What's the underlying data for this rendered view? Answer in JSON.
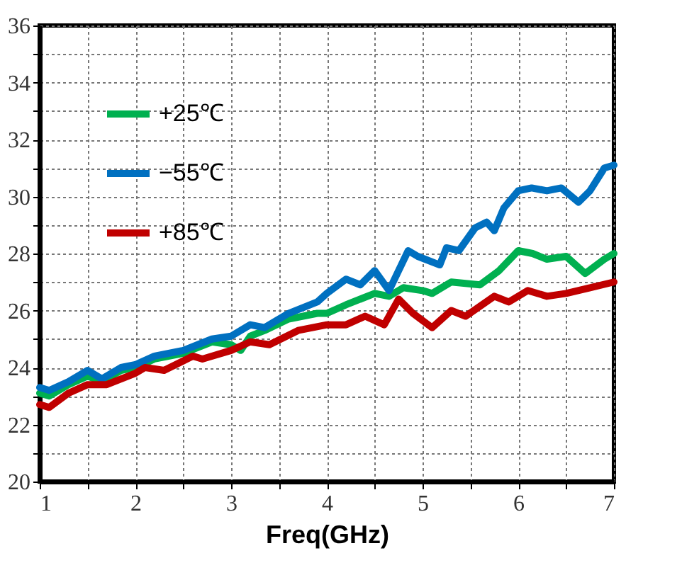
{
  "chart_data": {
    "type": "line",
    "xlabel": "Freq(GHz)",
    "xlim": [
      1,
      7
    ],
    "ylim": [
      20,
      36
    ],
    "xticks": [
      1,
      {
        "value": 1.5,
        "label": null
      },
      2,
      {
        "value": 2.5,
        "label": null
      },
      3,
      {
        "value": 3.5,
        "label": null
      },
      4,
      {
        "value": 4.5,
        "label": null
      },
      5,
      {
        "value": 5.5,
        "label": null
      },
      6,
      {
        "value": 6.5,
        "label": null
      },
      7
    ],
    "yticks": [
      20,
      {
        "value": 21,
        "label": null
      },
      22,
      {
        "value": 23,
        "label": null
      },
      24,
      {
        "value": 25,
        "label": null
      },
      26,
      {
        "value": 27,
        "label": null
      },
      28,
      {
        "value": 29,
        "label": null
      },
      30,
      {
        "value": 31,
        "label": null
      },
      32,
      {
        "value": 33,
        "label": null
      },
      34,
      {
        "value": 35,
        "label": null
      },
      36
    ],
    "grid": true,
    "legend": "top left",
    "line_style": "solid",
    "marker": "none",
    "series": [
      {
        "name": "+25℃",
        "color": "#00b050",
        "x": [
          1.0,
          1.1,
          1.3,
          1.5,
          1.65,
          1.85,
          2.0,
          2.2,
          2.5,
          2.8,
          3.0,
          3.1,
          3.2,
          3.35,
          3.6,
          3.9,
          4.0,
          4.2,
          4.5,
          4.65,
          4.8,
          5.0,
          5.1,
          5.3,
          5.6,
          5.8,
          6.0,
          6.15,
          6.3,
          6.5,
          6.7,
          6.9,
          7.0
        ],
        "values": [
          23.1,
          23.0,
          23.4,
          23.7,
          23.5,
          23.9,
          24.0,
          24.3,
          24.5,
          24.9,
          24.8,
          24.6,
          25.1,
          25.3,
          25.7,
          25.9,
          25.9,
          26.2,
          26.6,
          26.5,
          26.8,
          26.7,
          26.6,
          27.0,
          26.9,
          27.4,
          28.1,
          28.0,
          27.8,
          27.9,
          27.3,
          27.8,
          28.0
        ]
      },
      {
        "name": "−55℃",
        "color": "#0070c0",
        "x": [
          1.0,
          1.1,
          1.3,
          1.5,
          1.65,
          1.85,
          2.0,
          2.2,
          2.5,
          2.8,
          3.0,
          3.2,
          3.35,
          3.6,
          3.9,
          4.0,
          4.2,
          4.35,
          4.5,
          4.65,
          4.85,
          4.95,
          5.18,
          5.25,
          5.38,
          5.55,
          5.67,
          5.75,
          5.85,
          6.0,
          6.14,
          6.3,
          6.45,
          6.63,
          6.75,
          6.9,
          7.0
        ],
        "values": [
          23.3,
          23.2,
          23.5,
          23.9,
          23.6,
          24.0,
          24.1,
          24.4,
          24.6,
          25.0,
          25.1,
          25.5,
          25.4,
          25.9,
          26.3,
          26.6,
          27.1,
          26.9,
          27.4,
          26.7,
          28.1,
          27.9,
          27.6,
          28.2,
          28.1,
          28.9,
          29.1,
          28.8,
          29.6,
          30.2,
          30.3,
          30.2,
          30.3,
          29.8,
          30.2,
          31.0,
          31.1
        ]
      },
      {
        "name": "+85℃",
        "color": "#c00000",
        "x": [
          1.0,
          1.1,
          1.3,
          1.5,
          1.7,
          2.0,
          2.1,
          2.3,
          2.6,
          2.7,
          3.0,
          3.2,
          3.4,
          3.7,
          4.0,
          4.2,
          4.4,
          4.6,
          4.75,
          4.9,
          5.1,
          5.3,
          5.45,
          5.75,
          5.9,
          6.1,
          6.3,
          6.5,
          6.75,
          7.0
        ],
        "values": [
          22.7,
          22.6,
          23.1,
          23.4,
          23.4,
          23.8,
          24.0,
          23.9,
          24.4,
          24.3,
          24.6,
          24.9,
          24.8,
          25.3,
          25.5,
          25.5,
          25.8,
          25.5,
          26.4,
          25.9,
          25.4,
          26.0,
          25.8,
          26.5,
          26.3,
          26.7,
          26.5,
          26.6,
          26.8,
          27.0
        ]
      }
    ]
  }
}
